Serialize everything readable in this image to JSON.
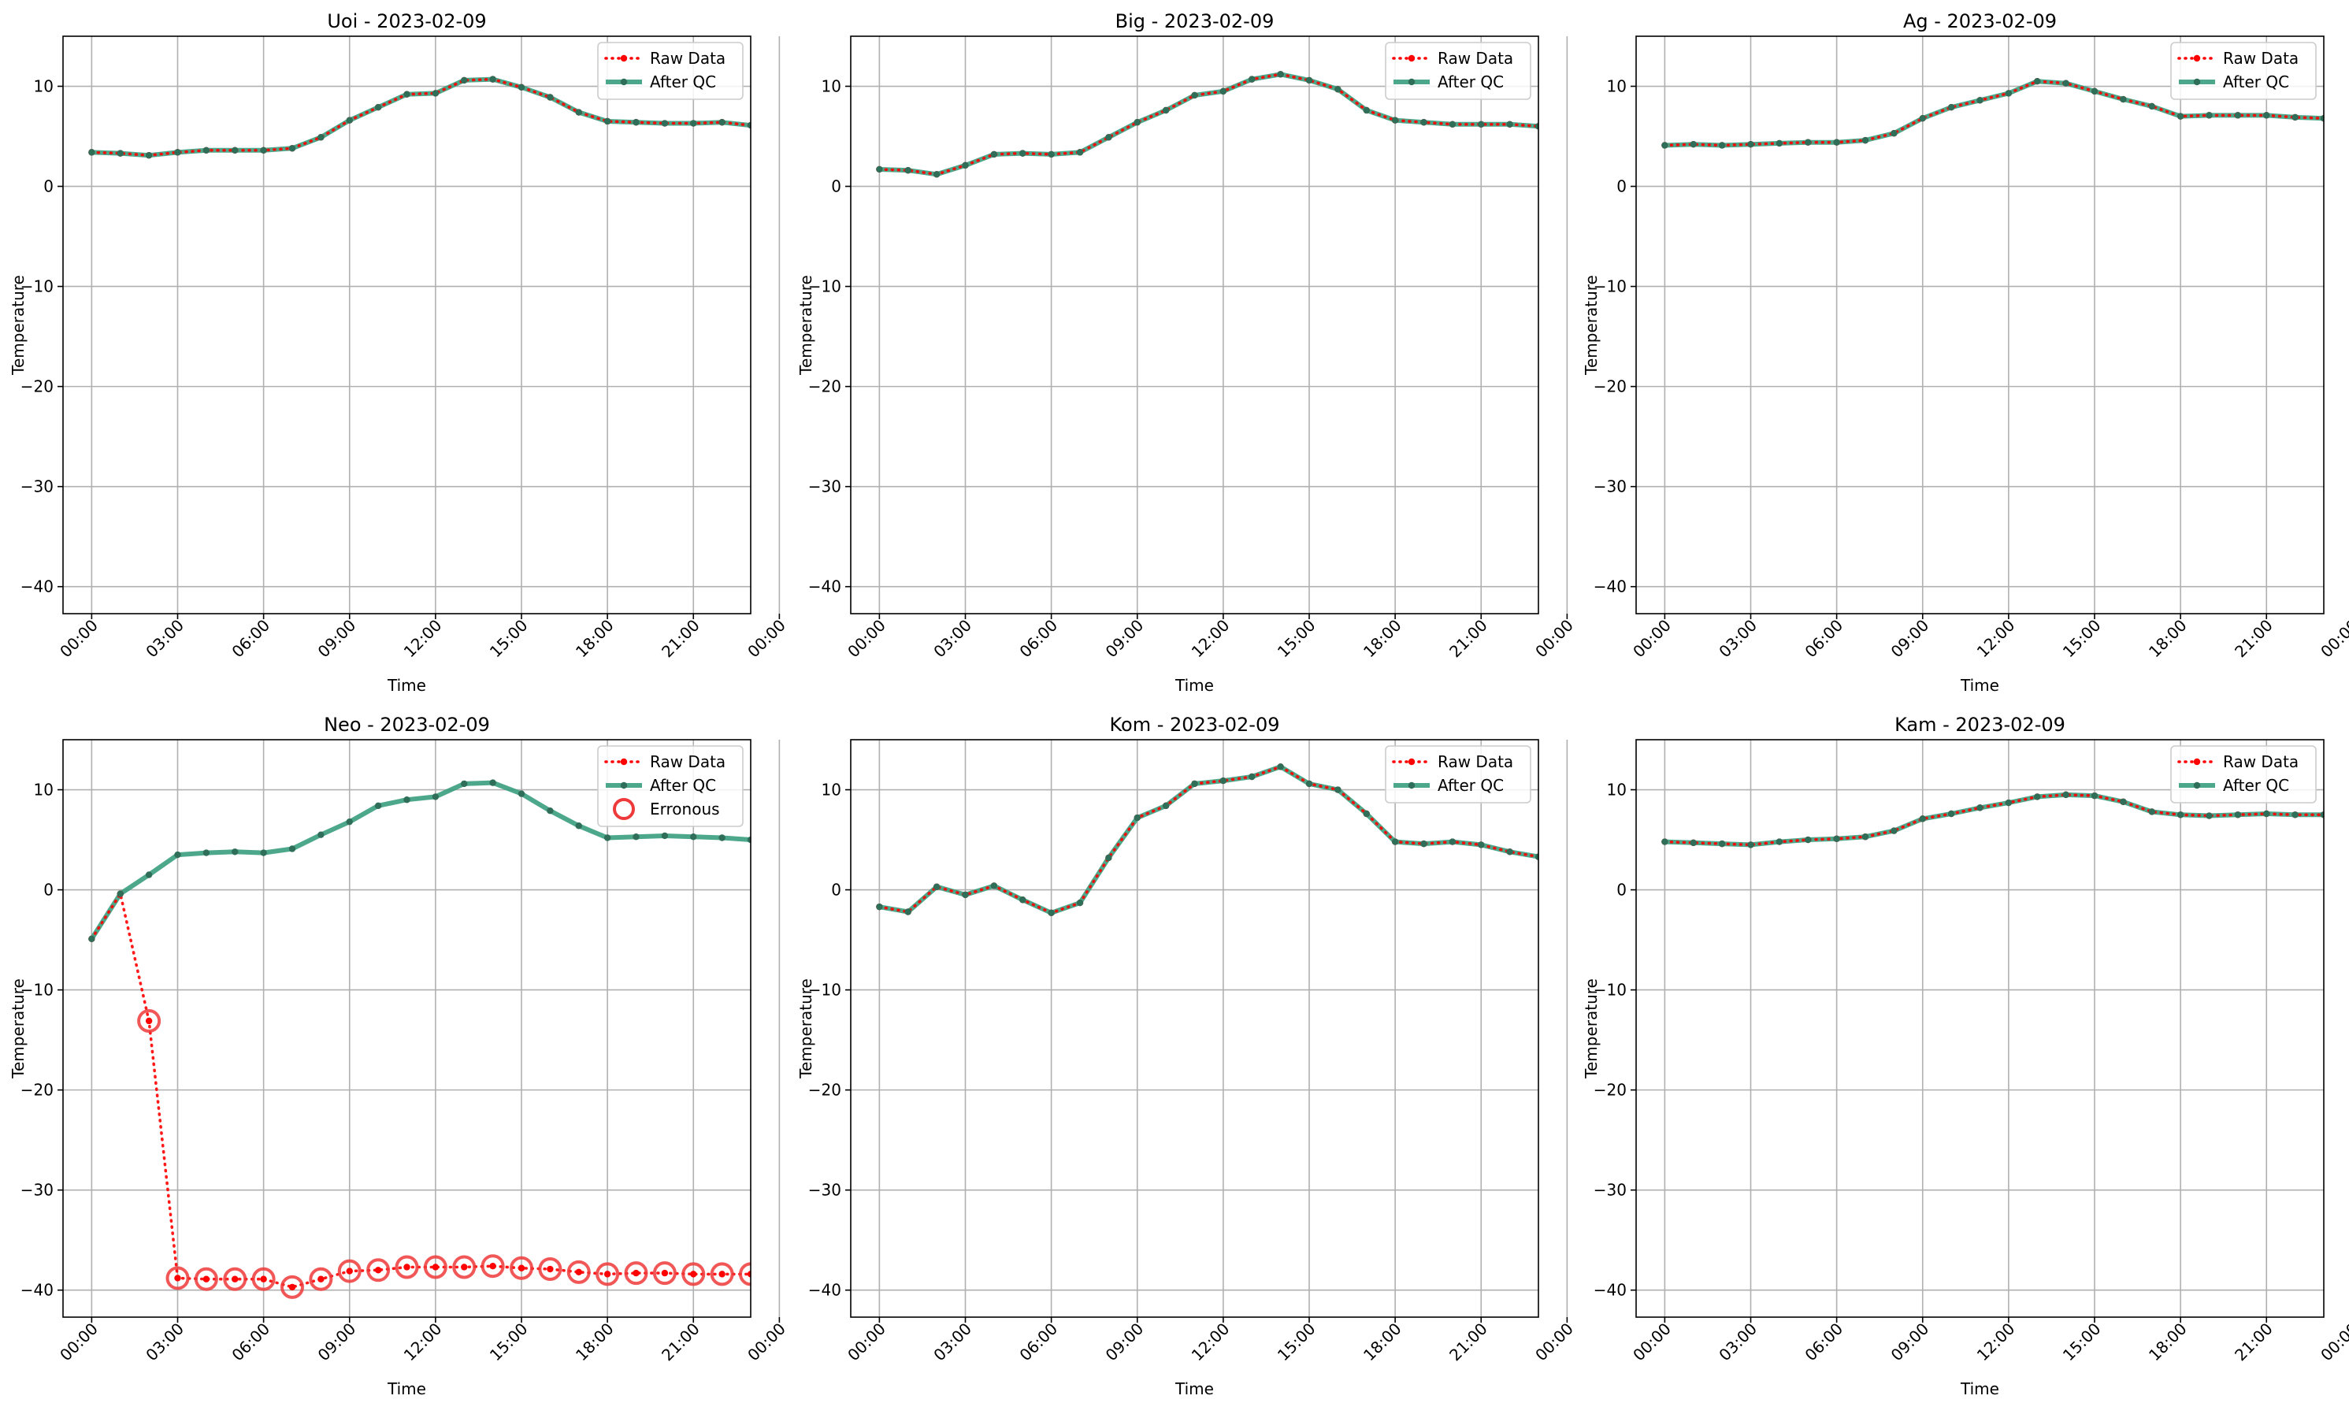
{
  "figure": {
    "background": "#ffffff"
  },
  "axes_common": {
    "xlabel": "Time",
    "ylabel": "Temperature",
    "xlim": [
      -1,
      23.0
    ],
    "ylim": [
      -42.7,
      15.0
    ],
    "yticks": [
      10,
      0,
      -10,
      -20,
      -30,
      -40
    ],
    "ytick_labels": [
      "10",
      "0",
      "−10",
      "−20",
      "−30",
      "−40"
    ],
    "xticks": [
      0,
      3,
      6,
      9,
      12,
      15,
      18,
      21,
      24
    ],
    "xtick_labels": [
      "00:00",
      "03:00",
      "06:00",
      "09:00",
      "12:00",
      "15:00",
      "18:00",
      "21:00",
      "00:00"
    ],
    "grid": true,
    "legend_location": "top-right"
  },
  "legend_labels": {
    "raw": "Raw Data",
    "qc": "After QC",
    "err": "Erronous"
  },
  "colors": {
    "raw": "#ff0000",
    "qc": "#3a9e7e",
    "qc_marker": "#2f6f5a",
    "err": "#ee3a3a",
    "grid": "#b0b0b0"
  },
  "chart_data": [
    {
      "type": "line",
      "title": "Uoi - 2023-02-09",
      "x": [
        0,
        1,
        2,
        3,
        4,
        5,
        6,
        7,
        8,
        9,
        10,
        11,
        12,
        13,
        14,
        15,
        16,
        17,
        18,
        19,
        20,
        21,
        22,
        23
      ],
      "series": [
        {
          "name": "Raw Data",
          "values": [
            3.4,
            3.3,
            3.1,
            3.4,
            3.6,
            3.6,
            3.6,
            3.8,
            4.9,
            6.6,
            7.9,
            9.2,
            9.3,
            10.6,
            10.7,
            9.9,
            8.9,
            7.4,
            6.5,
            6.4,
            6.3,
            6.3,
            6.4,
            6.1
          ]
        },
        {
          "name": "After QC",
          "values": [
            3.4,
            3.3,
            3.1,
            3.4,
            3.6,
            3.6,
            3.6,
            3.8,
            4.9,
            6.6,
            7.9,
            9.2,
            9.3,
            10.6,
            10.7,
            9.9,
            8.9,
            7.4,
            6.5,
            6.4,
            6.3,
            6.3,
            6.4,
            6.1
          ]
        }
      ],
      "erroneous": []
    },
    {
      "type": "line",
      "title": "Big - 2023-02-09",
      "x": [
        0,
        1,
        2,
        3,
        4,
        5,
        6,
        7,
        8,
        9,
        10,
        11,
        12,
        13,
        14,
        15,
        16,
        17,
        18,
        19,
        20,
        21,
        22,
        23
      ],
      "series": [
        {
          "name": "Raw Data",
          "values": [
            1.7,
            1.6,
            1.2,
            2.1,
            3.2,
            3.3,
            3.2,
            3.4,
            4.9,
            6.4,
            7.6,
            9.1,
            9.5,
            10.7,
            11.2,
            10.6,
            9.7,
            7.6,
            6.6,
            6.4,
            6.2,
            6.2,
            6.2,
            6.0
          ]
        },
        {
          "name": "After QC",
          "values": [
            1.7,
            1.6,
            1.2,
            2.1,
            3.2,
            3.3,
            3.2,
            3.4,
            4.9,
            6.4,
            7.6,
            9.1,
            9.5,
            10.7,
            11.2,
            10.6,
            9.7,
            7.6,
            6.6,
            6.4,
            6.2,
            6.2,
            6.2,
            6.0
          ]
        }
      ],
      "erroneous": []
    },
    {
      "type": "line",
      "title": "Ag - 2023-02-09",
      "x": [
        0,
        1,
        2,
        3,
        4,
        5,
        6,
        7,
        8,
        9,
        10,
        11,
        12,
        13,
        14,
        15,
        16,
        17,
        18,
        19,
        20,
        21,
        22,
        23
      ],
      "series": [
        {
          "name": "Raw Data",
          "values": [
            4.1,
            4.2,
            4.1,
            4.2,
            4.3,
            4.4,
            4.4,
            4.6,
            5.3,
            6.8,
            7.9,
            8.6,
            9.3,
            10.5,
            10.3,
            9.5,
            8.7,
            8.0,
            7.0,
            7.1,
            7.1,
            7.1,
            6.9,
            6.8
          ]
        },
        {
          "name": "After QC",
          "values": [
            4.1,
            4.2,
            4.1,
            4.2,
            4.3,
            4.4,
            4.4,
            4.6,
            5.3,
            6.8,
            7.9,
            8.6,
            9.3,
            10.5,
            10.3,
            9.5,
            8.7,
            8.0,
            7.0,
            7.1,
            7.1,
            7.1,
            6.9,
            6.8
          ]
        }
      ],
      "erroneous": []
    },
    {
      "type": "line",
      "title": "Neo - 2023-02-09",
      "x": [
        0,
        1,
        2,
        3,
        4,
        5,
        6,
        7,
        8,
        9,
        10,
        11,
        12,
        13,
        14,
        15,
        16,
        17,
        18,
        19,
        20,
        21,
        22,
        23
      ],
      "series": [
        {
          "name": "Raw Data",
          "values": [
            -4.9,
            -0.4,
            -13.1,
            -38.8,
            -38.9,
            -38.9,
            -38.9,
            -39.7,
            -38.9,
            -38.1,
            -38.0,
            -37.7,
            -37.7,
            -37.7,
            -37.6,
            -37.8,
            -37.9,
            -38.2,
            -38.4,
            -38.3,
            -38.3,
            -38.4,
            -38.4,
            -38.4
          ]
        },
        {
          "name": "After QC",
          "values": [
            -4.9,
            -0.4,
            1.5,
            3.5,
            3.7,
            3.8,
            3.7,
            4.1,
            5.5,
            6.8,
            8.4,
            9.0,
            9.3,
            10.6,
            10.7,
            9.6,
            7.9,
            6.4,
            5.2,
            5.3,
            5.4,
            5.3,
            5.2,
            5.0
          ]
        }
      ],
      "erroneous": [
        {
          "name": "Erronous",
          "x": [
            2,
            3,
            4,
            5,
            6,
            7,
            8,
            9,
            10,
            11,
            12,
            13,
            14,
            15,
            16,
            17,
            18,
            19,
            20,
            21,
            22,
            23
          ],
          "values": [
            -13.1,
            -38.8,
            -38.9,
            -38.9,
            -38.9,
            -39.7,
            -38.9,
            -38.1,
            -38.0,
            -37.7,
            -37.7,
            -37.7,
            -37.6,
            -37.8,
            -37.9,
            -38.2,
            -38.4,
            -38.3,
            -38.3,
            -38.4,
            -38.4,
            -38.4
          ]
        }
      ]
    },
    {
      "type": "line",
      "title": "Kom - 2023-02-09",
      "x": [
        0,
        1,
        2,
        3,
        4,
        5,
        6,
        7,
        8,
        9,
        10,
        11,
        12,
        13,
        14,
        15,
        16,
        17,
        18,
        19,
        20,
        21,
        22,
        23
      ],
      "series": [
        {
          "name": "Raw Data",
          "values": [
            -1.7,
            -2.2,
            0.3,
            -0.5,
            0.4,
            -1.0,
            -2.3,
            -1.3,
            3.2,
            7.2,
            8.4,
            10.6,
            10.9,
            11.3,
            12.3,
            10.6,
            10.0,
            7.6,
            4.8,
            4.6,
            4.8,
            4.5,
            3.8,
            3.3
          ]
        },
        {
          "name": "After QC",
          "values": [
            -1.7,
            -2.2,
            0.3,
            -0.5,
            0.4,
            -1.0,
            -2.3,
            -1.3,
            3.2,
            7.2,
            8.4,
            10.6,
            10.9,
            11.3,
            12.3,
            10.6,
            10.0,
            7.6,
            4.8,
            4.6,
            4.8,
            4.5,
            3.8,
            3.3
          ]
        }
      ],
      "erroneous": []
    },
    {
      "type": "line",
      "title": "Kam - 2023-02-09",
      "x": [
        0,
        1,
        2,
        3,
        4,
        5,
        6,
        7,
        8,
        9,
        10,
        11,
        12,
        13,
        14,
        15,
        16,
        17,
        18,
        19,
        20,
        21,
        22,
        23
      ],
      "series": [
        {
          "name": "Raw Data",
          "values": [
            4.8,
            4.7,
            4.6,
            4.5,
            4.8,
            5.0,
            5.1,
            5.3,
            5.9,
            7.1,
            7.6,
            8.2,
            8.7,
            9.3,
            9.5,
            9.4,
            8.8,
            7.8,
            7.5,
            7.4,
            7.5,
            7.6,
            7.5,
            7.5
          ]
        },
        {
          "name": "After QC",
          "values": [
            4.8,
            4.7,
            4.6,
            4.5,
            4.8,
            5.0,
            5.1,
            5.3,
            5.9,
            7.1,
            7.6,
            8.2,
            8.7,
            9.3,
            9.5,
            9.4,
            8.8,
            7.8,
            7.5,
            7.4,
            7.5,
            7.6,
            7.5,
            7.5
          ]
        }
      ],
      "erroneous": []
    }
  ]
}
